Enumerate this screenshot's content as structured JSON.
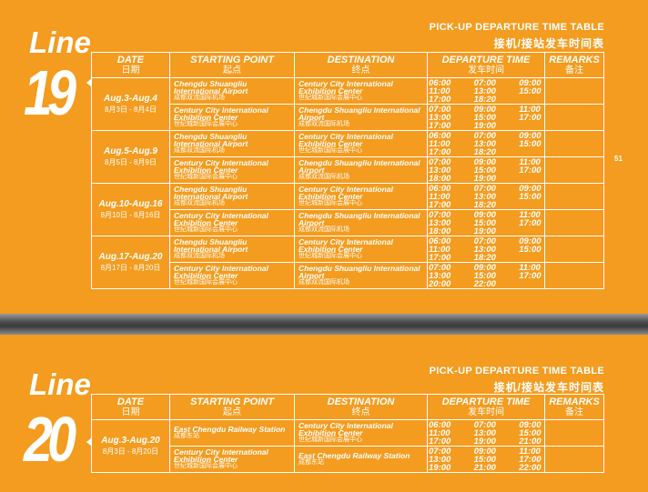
{
  "page_number": "51",
  "columns": {
    "date_en": "DATE",
    "date_cn": "日期",
    "start_en": "STARTING POINT",
    "start_cn": "起点",
    "dest_en": "DESTINATION",
    "dest_cn": "终点",
    "dep_en": "DEPARTURE TIME",
    "dep_cn": "发车时间",
    "rem_en": "REMARKS",
    "rem_cn": "备注"
  },
  "line19": {
    "word": "Line",
    "number": "19",
    "heading_en": "PICK-UP DEPARTURE  TIME TABLE",
    "heading_cn": "接机/接站发车时间表",
    "groups": [
      {
        "date_en": "Aug.3-Aug.4",
        "date_cn": "8月3日 - 8月4日",
        "rows": [
          {
            "start_en": "Chengdu Shuangliu International Airport",
            "start_cn": "成都双流国际机场",
            "dest_en": "Century City International Exhibition Center",
            "dest_cn": "世纪城新国际会展中心",
            "times": [
              [
                "06:00",
                "07:00",
                "09:00"
              ],
              [
                "11:00",
                "13:00",
                "15:00"
              ],
              [
                "17:00",
                "18:20",
                ""
              ]
            ]
          },
          {
            "start_en": "Century City International Exhibition Center",
            "start_cn": "世纪城新国际会展中心",
            "dest_en": "Chengdu Shuangliu International Airport",
            "dest_cn": "成都双流国际机场",
            "times": [
              [
                "07:00",
                "09:00",
                "11:00"
              ],
              [
                "13:00",
                "15:00",
                "17:00"
              ],
              [
                "17:00",
                "19:00",
                ""
              ]
            ]
          }
        ]
      },
      {
        "date_en": "Aug.5-Aug.9",
        "date_cn": "8月5日 - 8月9日",
        "rows": [
          {
            "start_en": "Chengdu Shuangliu International Airport",
            "start_cn": "成都双流国际机场",
            "dest_en": "Century City International Exhibition Center",
            "dest_cn": "世纪城新国际会展中心",
            "times": [
              [
                "06:00",
                "07:00",
                "09:00"
              ],
              [
                "11:00",
                "13:00",
                "15:00"
              ],
              [
                "17:00",
                "18:20",
                ""
              ]
            ]
          },
          {
            "start_en": "Century City International Exhibition Center",
            "start_cn": "世纪城新国际会展中心",
            "dest_en": "Chengdu Shuangliu International Airport",
            "dest_cn": "成都双流国际机场",
            "times": [
              [
                "07:00",
                "09:00",
                "11:00"
              ],
              [
                "13:00",
                "15:00",
                "17:00"
              ],
              [
                "18:00",
                "19:00",
                ""
              ]
            ]
          }
        ]
      },
      {
        "date_en": "Aug.10-Aug.16",
        "date_cn": "8月10日 - 8月16日",
        "rows": [
          {
            "start_en": "Chengdu Shuangliu International Airport",
            "start_cn": "成都双流国际机场",
            "dest_en": "Century City International Exhibition Center",
            "dest_cn": "世纪城新国际会展中心",
            "times": [
              [
                "06:00",
                "07:00",
                "09:00"
              ],
              [
                "11:00",
                "13:00",
                "15:00"
              ],
              [
                "17:00",
                "18:20",
                ""
              ]
            ]
          },
          {
            "start_en": "Century City International Exhibition Center",
            "start_cn": "世纪城新国际会展中心",
            "dest_en": "Chengdu Shuangliu International Airport",
            "dest_cn": "成都双流国际机场",
            "times": [
              [
                "07:00",
                "09:00",
                "11:00"
              ],
              [
                "13:00",
                "15:00",
                "17:00"
              ],
              [
                "18:00",
                "19:00",
                ""
              ]
            ]
          }
        ]
      },
      {
        "date_en": "Aug.17-Aug.20",
        "date_cn": "8月17日 - 8月20日",
        "rows": [
          {
            "start_en": "Chengdu Shuangliu International Airport",
            "start_cn": "成都双流国际机场",
            "dest_en": "Century City International Exhibition Center",
            "dest_cn": "世纪城新国际会展中心",
            "times": [
              [
                "06:00",
                "07:00",
                "09:00"
              ],
              [
                "11:00",
                "13:00",
                "15:00"
              ],
              [
                "17:00",
                "18:20",
                ""
              ]
            ]
          },
          {
            "start_en": "Century City International Exhibition Center",
            "start_cn": "世纪城新国际会展中心",
            "dest_en": "Chengdu Shuangliu International Airport",
            "dest_cn": "成都双流国际机场",
            "times": [
              [
                "07:00",
                "09:00",
                "11:00"
              ],
              [
                "13:00",
                "15:00",
                "17:00"
              ],
              [
                "20:00",
                "22:00",
                ""
              ]
            ]
          }
        ]
      }
    ]
  },
  "line20": {
    "word": "Line",
    "number": "20",
    "heading_en": "PICK-UP DEPARTURE  TIME TABLE",
    "heading_cn": "接机/接站发车时间表",
    "groups": [
      {
        "date_en": "Aug.3-Aug.20",
        "date_cn": "8月3日 - 8月20日",
        "rows": [
          {
            "start_en": "East Chengdu Railway Station",
            "start_cn": "成都东站",
            "dest_en": "Century City International Exhibition Center",
            "dest_cn": "世纪城新国际会展中心",
            "times": [
              [
                "06:00",
                "07:00",
                "09:00"
              ],
              [
                "11:00",
                "13:00",
                "15:00"
              ],
              [
                "17:00",
                "19:00",
                "21:00"
              ]
            ]
          },
          {
            "start_en": "Century City International Exhibition Center",
            "start_cn": "世纪城新国际会展中心",
            "dest_en": "East Chengdu Railway Station",
            "dest_cn": "成都东站",
            "times": [
              [
                "07:00",
                "09:00",
                "11:00"
              ],
              [
                "13:00",
                "15:00",
                "17:00"
              ],
              [
                "19:00",
                "21:00",
                "22:00"
              ]
            ]
          }
        ]
      }
    ]
  }
}
